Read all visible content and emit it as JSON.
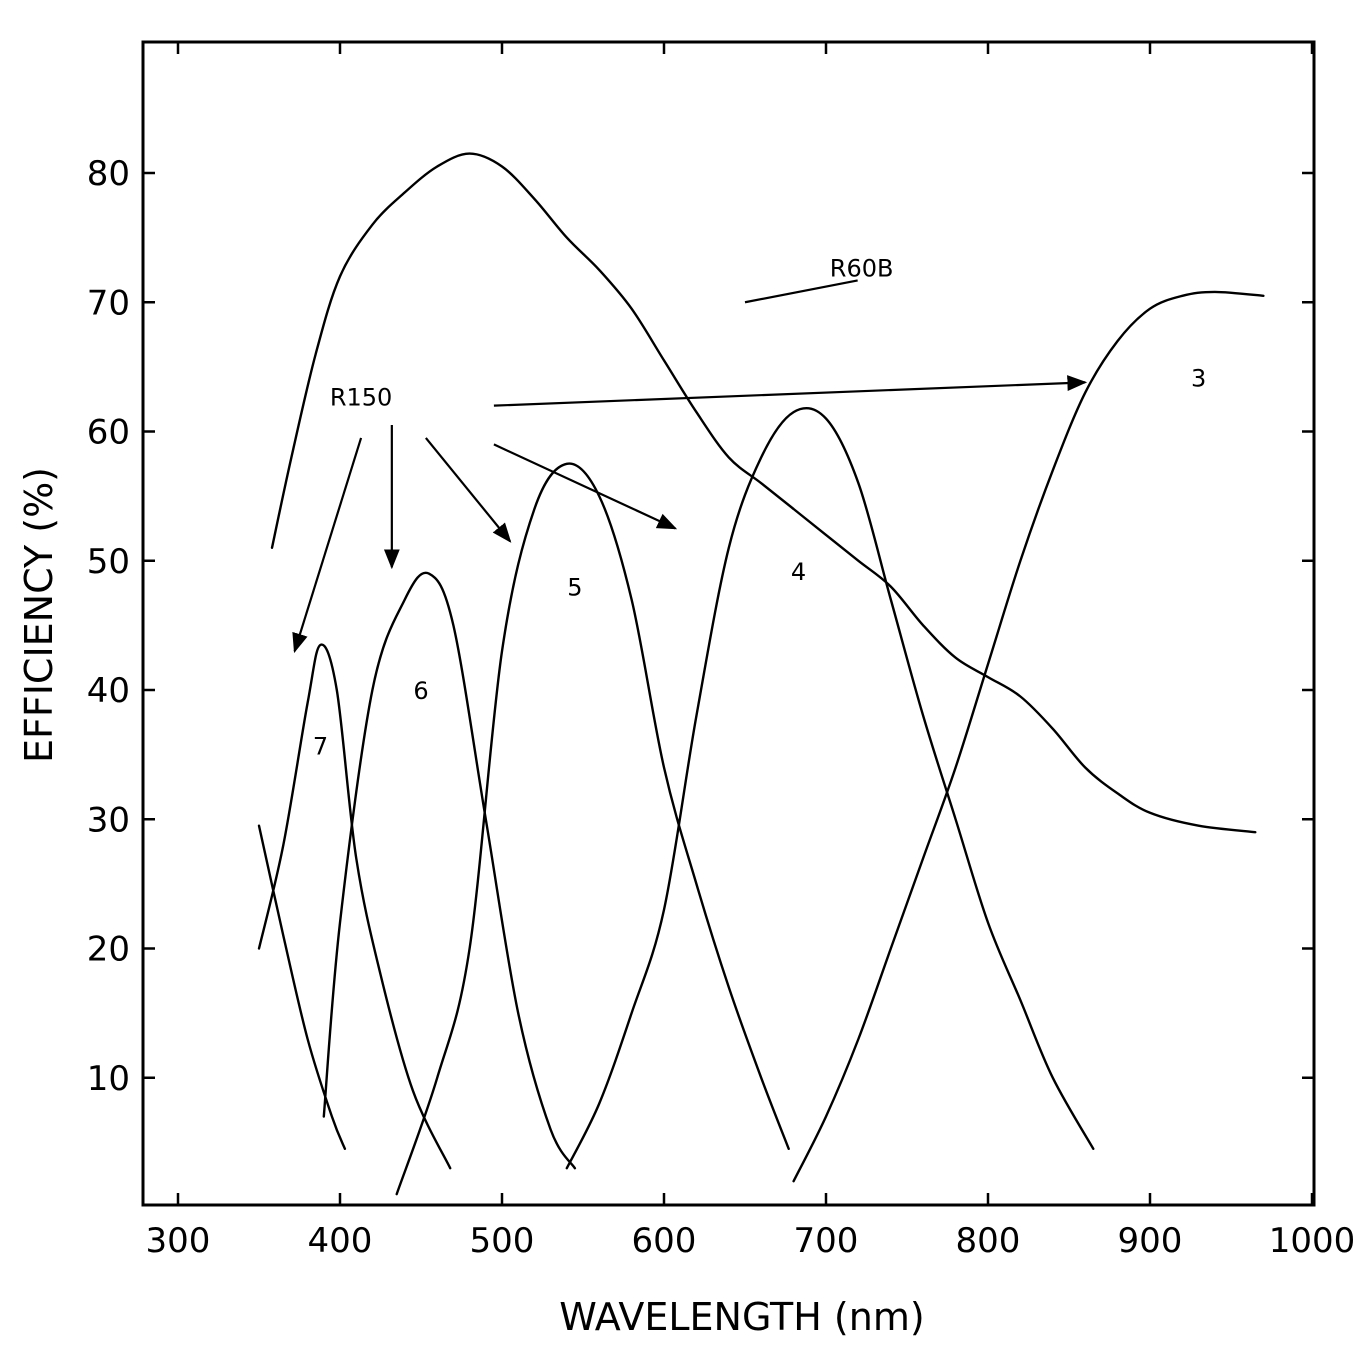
{
  "chart_data": {
    "type": "line",
    "title": "",
    "xlabel": "WAVELENGTH  (nm)",
    "ylabel": "EFFICIENCY (%)",
    "xlim": [
      280,
      1000
    ],
    "ylim": [
      0,
      90
    ],
    "x_ticks": [
      300,
      400,
      500,
      600,
      700,
      800,
      900,
      1000
    ],
    "y_ticks": [
      10,
      20,
      30,
      40,
      50,
      60,
      70,
      80
    ],
    "grid": false,
    "series": [
      {
        "name": "R60B",
        "x": [
          358,
          370,
          385,
          400,
          420,
          440,
          460,
          480,
          500,
          520,
          540,
          560,
          580,
          600,
          620,
          640,
          660,
          680,
          700,
          720,
          740,
          760,
          780,
          800,
          820,
          840,
          860,
          880,
          900,
          930,
          965
        ],
        "y": [
          51,
          58,
          66,
          72,
          76,
          78.5,
          80.5,
          81.5,
          80.5,
          78,
          75,
          72.5,
          69.5,
          65.5,
          61.5,
          58,
          56,
          54,
          52,
          50,
          48,
          45,
          42.5,
          41,
          39.5,
          37,
          34,
          32,
          30.5,
          29.5,
          29
        ]
      },
      {
        "name": "3",
        "x": [
          680,
          700,
          720,
          740,
          760,
          780,
          800,
          820,
          840,
          860,
          880,
          900,
          920,
          940,
          970
        ],
        "y": [
          2,
          7,
          13,
          20,
          27,
          34,
          42,
          50,
          57,
          63,
          67,
          69.5,
          70.5,
          70.8,
          70.5
        ]
      },
      {
        "name": "4",
        "x": [
          540,
          560,
          580,
          600,
          620,
          640,
          660,
          680,
          700,
          720,
          740,
          760,
          780,
          800,
          820,
          840,
          865
        ],
        "y": [
          3,
          8,
          15,
          23,
          38,
          51,
          58,
          61.5,
          61,
          56,
          47,
          38,
          30,
          22,
          16,
          10,
          4.5
        ]
      },
      {
        "name": "5",
        "x": [
          435,
          460,
          480,
          500,
          520,
          540,
          560,
          580,
          600,
          620,
          640,
          660,
          677
        ],
        "y": [
          1,
          10,
          20,
          43,
          54,
          57.5,
          55,
          47,
          34,
          25,
          17,
          10,
          4.5
        ]
      },
      {
        "name": "6",
        "x": [
          390,
          400,
          420,
          440,
          455,
          470,
          490,
          510,
          530,
          545
        ],
        "y": [
          7,
          22,
          40,
          47,
          49,
          45,
          30,
          15,
          6,
          3
        ]
      },
      {
        "name": "7",
        "x": [
          350,
          365,
          380,
          388,
          398,
          410,
          425,
          445,
          468
        ],
        "y": [
          20,
          28,
          39,
          43.5,
          40,
          27,
          18,
          9,
          3
        ]
      },
      {
        "name": "",
        "x": [
          350,
          365,
          380,
          395,
          403
        ],
        "y": [
          29.5,
          21,
          13,
          7,
          4.5
        ]
      }
    ],
    "annotations": [
      {
        "text": "R60B",
        "x": 722,
        "y": 72,
        "points_to": [
          650,
          70
        ]
      },
      {
        "text": "R150",
        "x": 413,
        "y": 62
      },
      {
        "text": "3",
        "x": 930,
        "y": 63.5
      },
      {
        "text": "4",
        "x": 683,
        "y": 48.5
      },
      {
        "text": "5",
        "x": 545,
        "y": 47.3
      },
      {
        "text": "6",
        "x": 450,
        "y": 39.3
      },
      {
        "text": "7",
        "x": 388,
        "y": 35
      }
    ],
    "r150_arrows": [
      {
        "from": [
          495,
          62
        ],
        "to": [
          860,
          63.8
        ]
      },
      {
        "from": [
          432,
          60.5
        ],
        "to": [
          432,
          49.5
        ]
      },
      {
        "from": [
          413,
          59.5
        ],
        "to": [
          372,
          43
        ]
      },
      {
        "from": [
          453,
          59.5
        ],
        "to": [
          505,
          51.5
        ]
      },
      {
        "from": [
          495,
          59
        ],
        "to": [
          607,
          52.5
        ]
      }
    ]
  }
}
